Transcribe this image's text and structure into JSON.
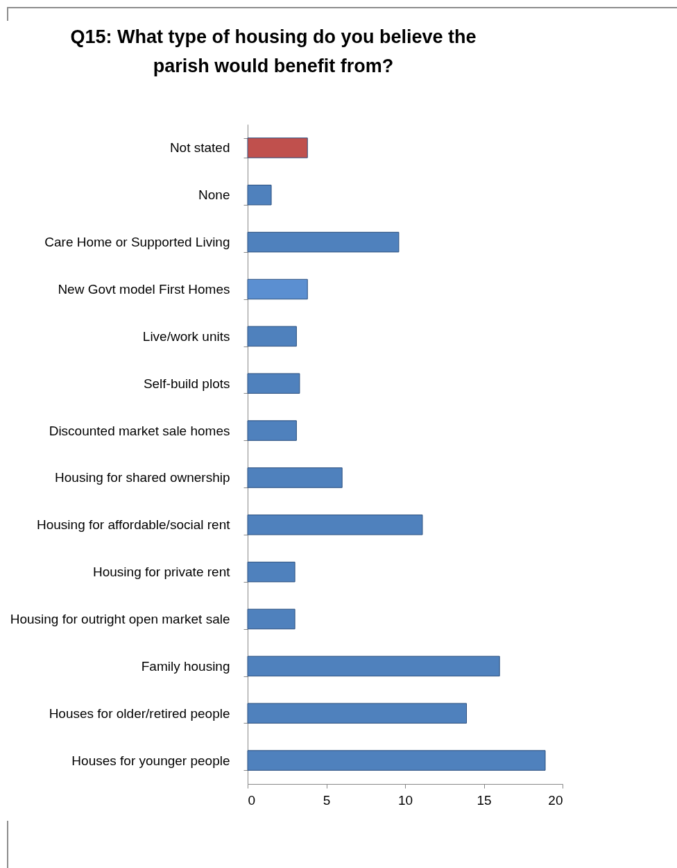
{
  "chart_data": {
    "type": "bar",
    "orientation": "horizontal",
    "title": "Q15: What type of housing do you believe the parish would benefit from?",
    "categories": [
      "Not stated",
      "None",
      "Care Home or Supported Living",
      "New Govt model First Homes",
      "Live/work units",
      "Self-build plots",
      "Discounted market sale homes",
      "Housing for shared ownership",
      "Housing for affordable/social rent",
      "Housing for private rent",
      "Housing for outright open market sale",
      "Family housing",
      "Houses for older/retired people",
      "Houses for younger people"
    ],
    "values": [
      3.8,
      1.5,
      9.6,
      3.8,
      3.1,
      3.3,
      3.1,
      6.0,
      11.1,
      3.0,
      3.0,
      16.0,
      13.9,
      18.9
    ],
    "colors": [
      "#c0504d",
      "#4f81bd",
      "#4f81bd",
      "#5b8fd1",
      "#4f81bd",
      "#4f81bd",
      "#4f81bd",
      "#4f81bd",
      "#4f81bd",
      "#4f81bd",
      "#4f81bd",
      "#4f81bd",
      "#4f81bd",
      "#4f81bd"
    ],
    "xlim": [
      0,
      20
    ],
    "xticks": [
      0,
      5,
      10,
      15,
      20
    ],
    "grid": false,
    "legend": false
  }
}
